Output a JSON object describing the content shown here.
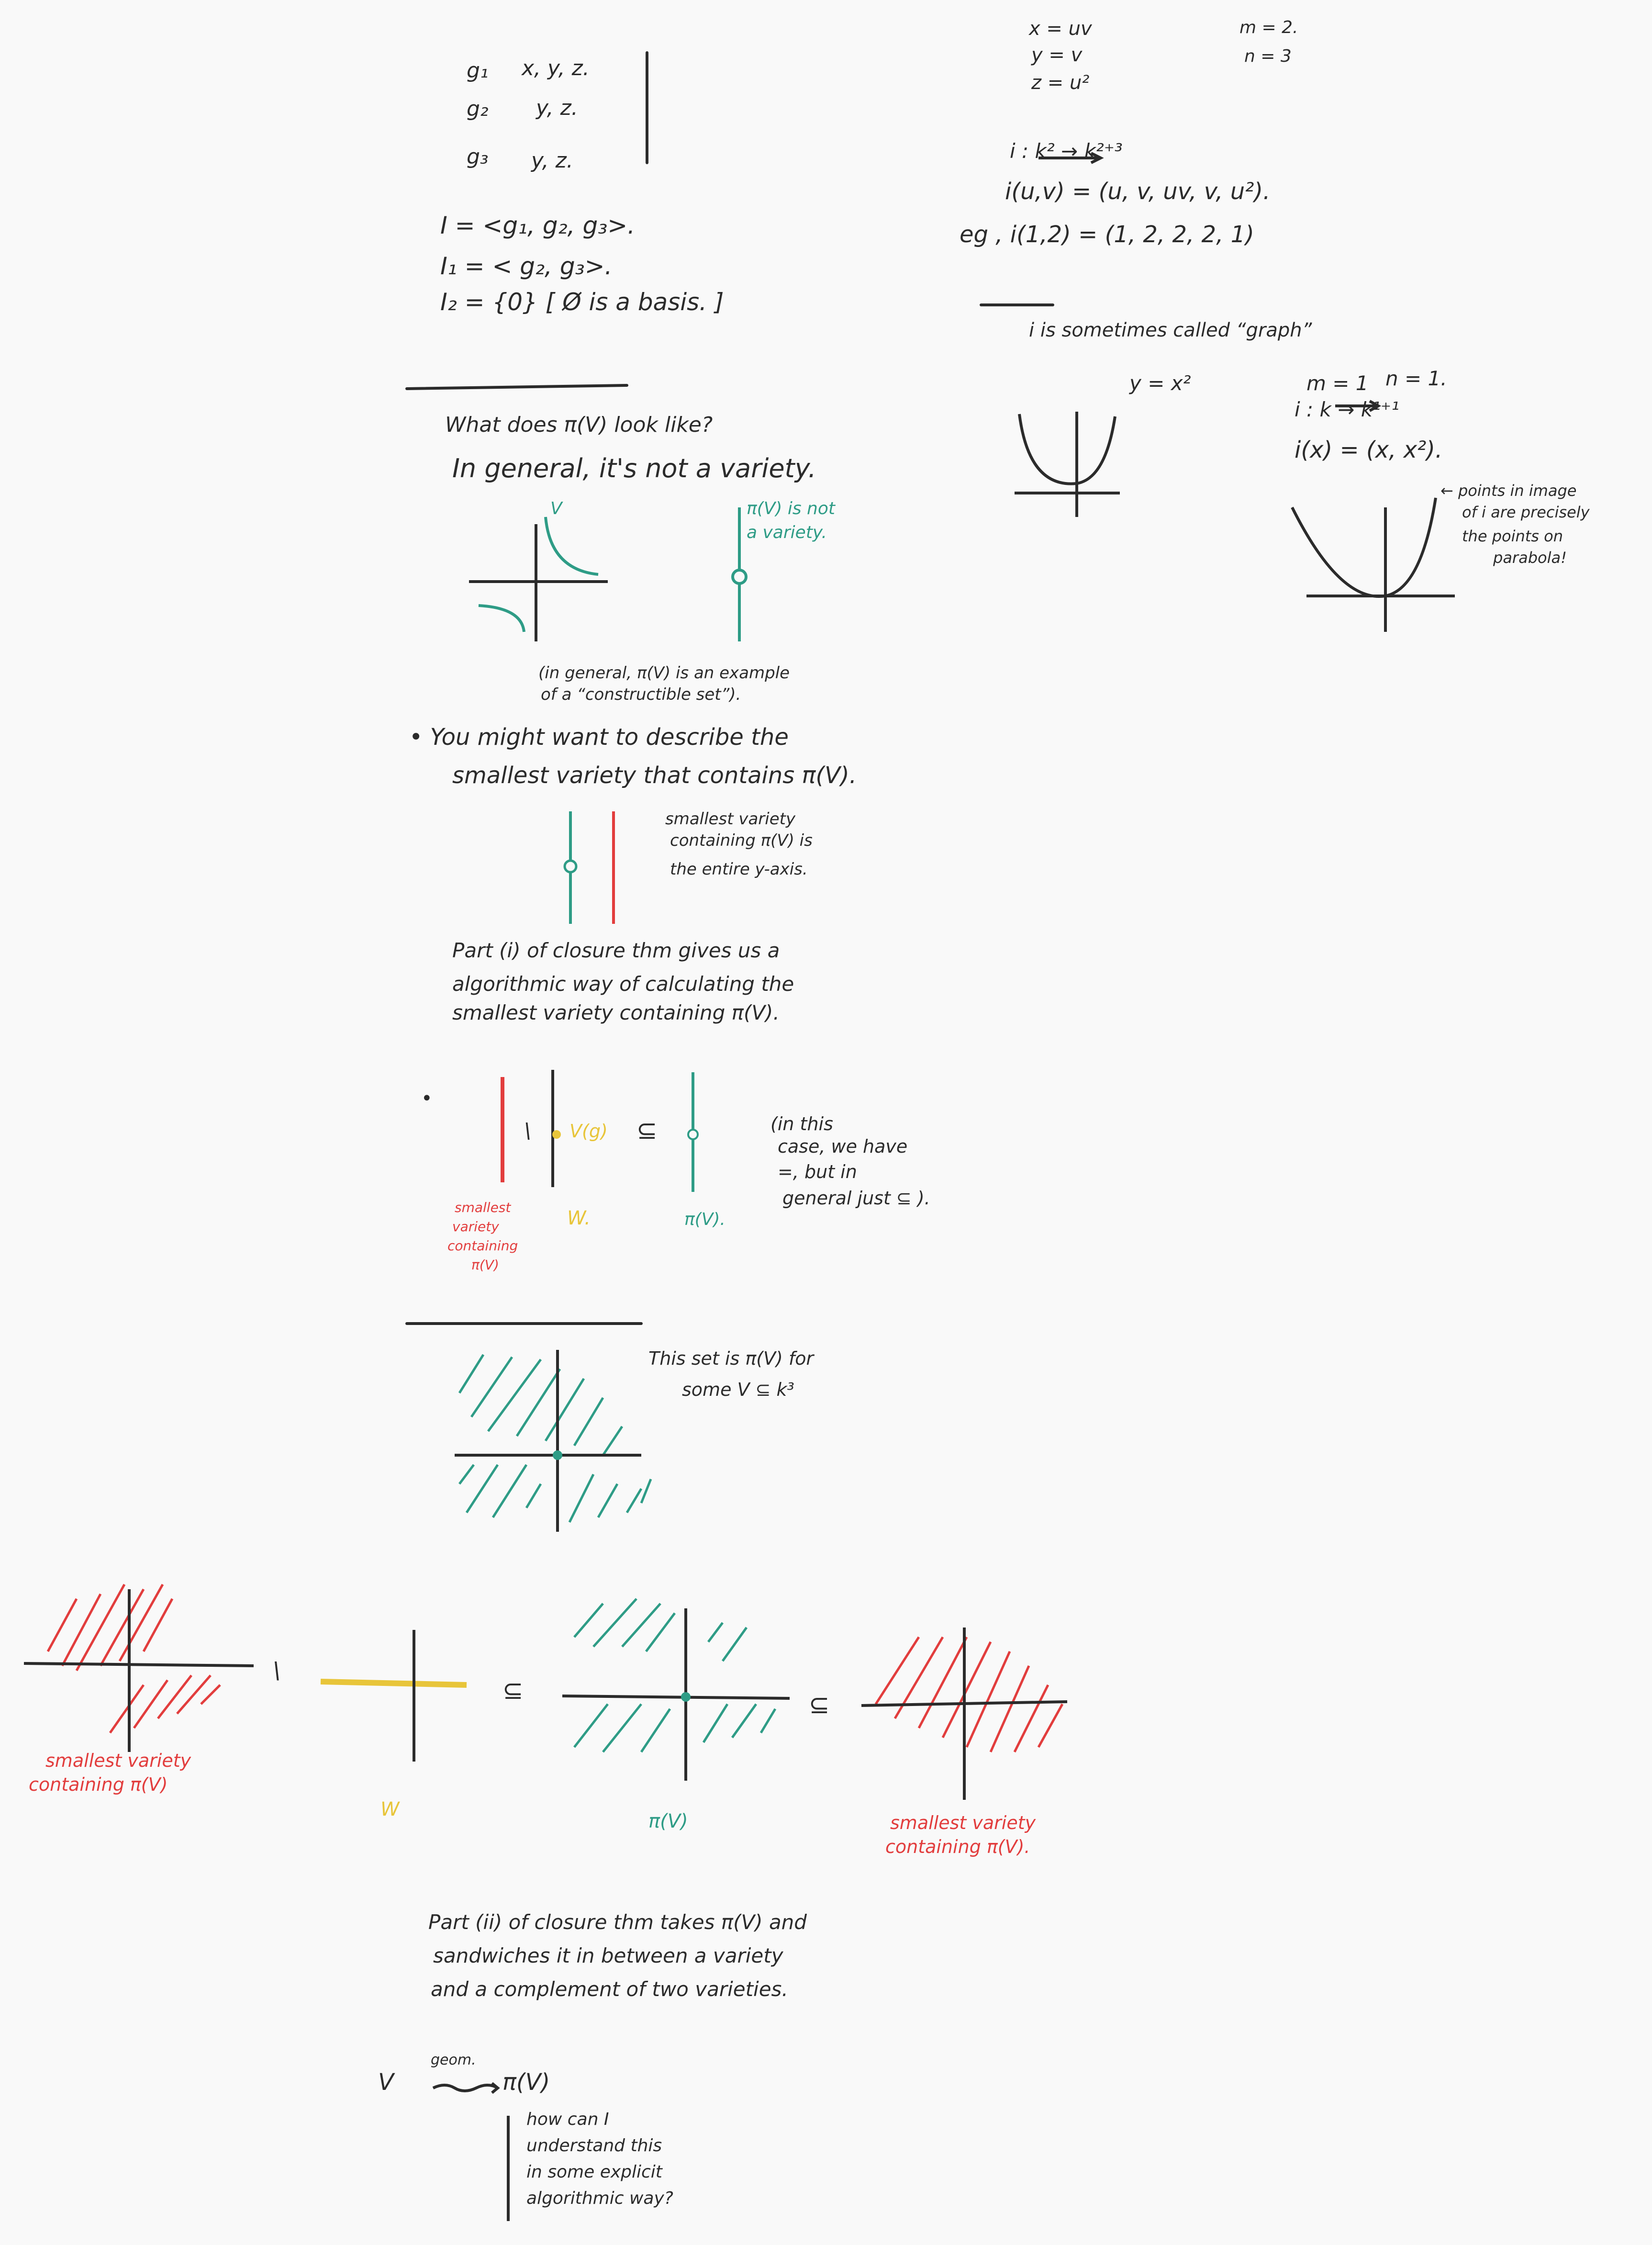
{
  "colors": {
    "ink": "#2b2b2b",
    "teal": "#2e9c86",
    "red": "#e23d3d",
    "yellow": "#e8c53a",
    "paper": "#f9f9f9"
  },
  "left": {
    "g1": "g₁",
    "g1_vars": "x, y, z.",
    "g2": "g₂",
    "g2_vars": "y, z.",
    "g3": "g₃",
    "g3_vars": "y, z.",
    "I": "I = <g₁, g₂, g₃>.",
    "I1": "I₁ = < g₂, g₃>.",
    "I2": "I₂ = {0}  [ Ø is a basis. ]",
    "q1": "What does π(V) look like?",
    "q2": "In general, it's not a variety.",
    "V": "V",
    "piv_not": "π(V) is not",
    "piv_not2": "a variety.",
    "constructible1": "(in general, π(V) is an example",
    "constructible2": "of a “constructible set”).",
    "bullet1a": "• You might want to describe the",
    "bullet1b": "smallest variety that contains π(V).",
    "smallest1": "smallest variety",
    "smallest2": "containing π(V) is",
    "smallest3": "the entire y-axis.",
    "part1a": "Part (i) of closure thm gives us a",
    "part1b": "algorithmic way of calculating the",
    "part1c": "smallest variety containing π(V).",
    "bullet2": "•",
    "setminus": "\\",
    "vg": "V(g)",
    "subseteq": "⊆",
    "inthis1": "(in this",
    "inthis2": "case, we have",
    "inthis3": "=, but in",
    "inthis4": "general just ⊆ ).",
    "sm_label1": "smallest",
    "sm_label2": "variety",
    "sm_label3": "containing",
    "sm_label4": "π(V)",
    "W": "W.",
    "piV": "π(V).",
    "thisset1": "This set is π(V)  for",
    "thisset2": "some  V ⊆ k³"
  },
  "right": {
    "x_eq": "x = uv",
    "y_eq": "y = v",
    "z_eq": "z = u²",
    "m_eq": "m = 2.",
    "n_eq": "n = 3",
    "map": "i : k² → k²⁺³",
    "iuv": "i(u,v) = (u, v, uv, v, u²).",
    "eg": "eg ,  i(1,2) = (1, 2, 2, 2, 1)",
    "graph": "i is sometimes called “graph”",
    "yx2": "y = x²",
    "m1": "m = 1",
    "n1": "n = 1.",
    "ik": "i : k → k¹⁺¹",
    "ix": "i(x) = (x, x²).",
    "pts1": "← points in image",
    "pts2": "of i are precisely",
    "pts3": "the points on",
    "pts4": "parabola!"
  },
  "bottom": {
    "smv1": "smallest variety",
    "smv2": "containing π(V)",
    "setminus": "\\",
    "W": "W",
    "sub1": "⊆",
    "piV": "π(V)",
    "sub2": "⊆",
    "smv3": "smallest variety",
    "smv4": "containing π(V).",
    "part2a": "Part (ii) of closure thm takes π(V) and",
    "part2b": "sandwiches it in between a variety",
    "part2c": "and a complement of two varieties.",
    "V": "V",
    "geom": "geom.",
    "piV2": "π(V)",
    "how1": "how can I",
    "how2": "understand this",
    "how3": "in some explicit",
    "how4": "algorithmic way?"
  }
}
